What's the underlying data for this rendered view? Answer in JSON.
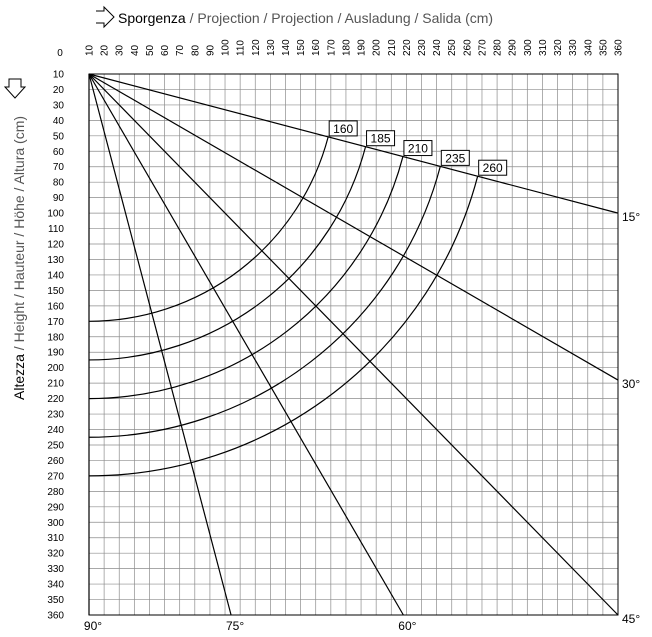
{
  "chart_data": {
    "type": "diagram",
    "title": {
      "primary": "Sporgenza",
      "secondary": " / Projection / Projection / Ausladung / Salida (cm)"
    },
    "ylabel": {
      "primary": "Altezza",
      "secondary": " / Height / Hauteur / Höhe / Altura (cm)"
    },
    "x_origin_label": "0",
    "x_ticks": [
      10,
      20,
      30,
      40,
      50,
      60,
      70,
      80,
      90,
      100,
      110,
      120,
      130,
      140,
      150,
      160,
      170,
      180,
      190,
      200,
      210,
      220,
      230,
      240,
      250,
      260,
      270,
      280,
      290,
      300,
      310,
      320,
      330,
      340,
      350,
      360
    ],
    "y_ticks": [
      10,
      20,
      30,
      40,
      50,
      60,
      70,
      80,
      90,
      100,
      110,
      120,
      130,
      140,
      150,
      160,
      170,
      180,
      190,
      200,
      210,
      220,
      230,
      240,
      250,
      260,
      270,
      280,
      290,
      300,
      310,
      320,
      330,
      340,
      350,
      360
    ],
    "xlim": [
      10,
      360
    ],
    "ylim": [
      10,
      360
    ],
    "origin": {
      "x": 10,
      "y": 10
    },
    "angle_lines": [
      {
        "label": "15°",
        "end": {
          "x": 360,
          "y": 100
        }
      },
      {
        "label": "30°",
        "end": {
          "x": 360,
          "y": 208
        }
      },
      {
        "label": "45°",
        "end": {
          "x": 360,
          "y": 360
        }
      },
      {
        "label": "60°",
        "end": {
          "x": 218,
          "y": 360
        }
      },
      {
        "label": "75°",
        "end": {
          "x": 104,
          "y": 360
        }
      },
      {
        "label": "90°",
        "end": {
          "x": 10,
          "y": 360
        }
      }
    ],
    "arcs": [
      {
        "label": "160",
        "radius": 160
      },
      {
        "label": "185",
        "radius": 185
      },
      {
        "label": "210",
        "radius": 210
      },
      {
        "label": "235",
        "radius": 235
      },
      {
        "label": "260",
        "radius": 260
      }
    ]
  },
  "icons": {
    "x_axis": "right-arrow-icon",
    "y_axis": "down-arrow-icon"
  }
}
